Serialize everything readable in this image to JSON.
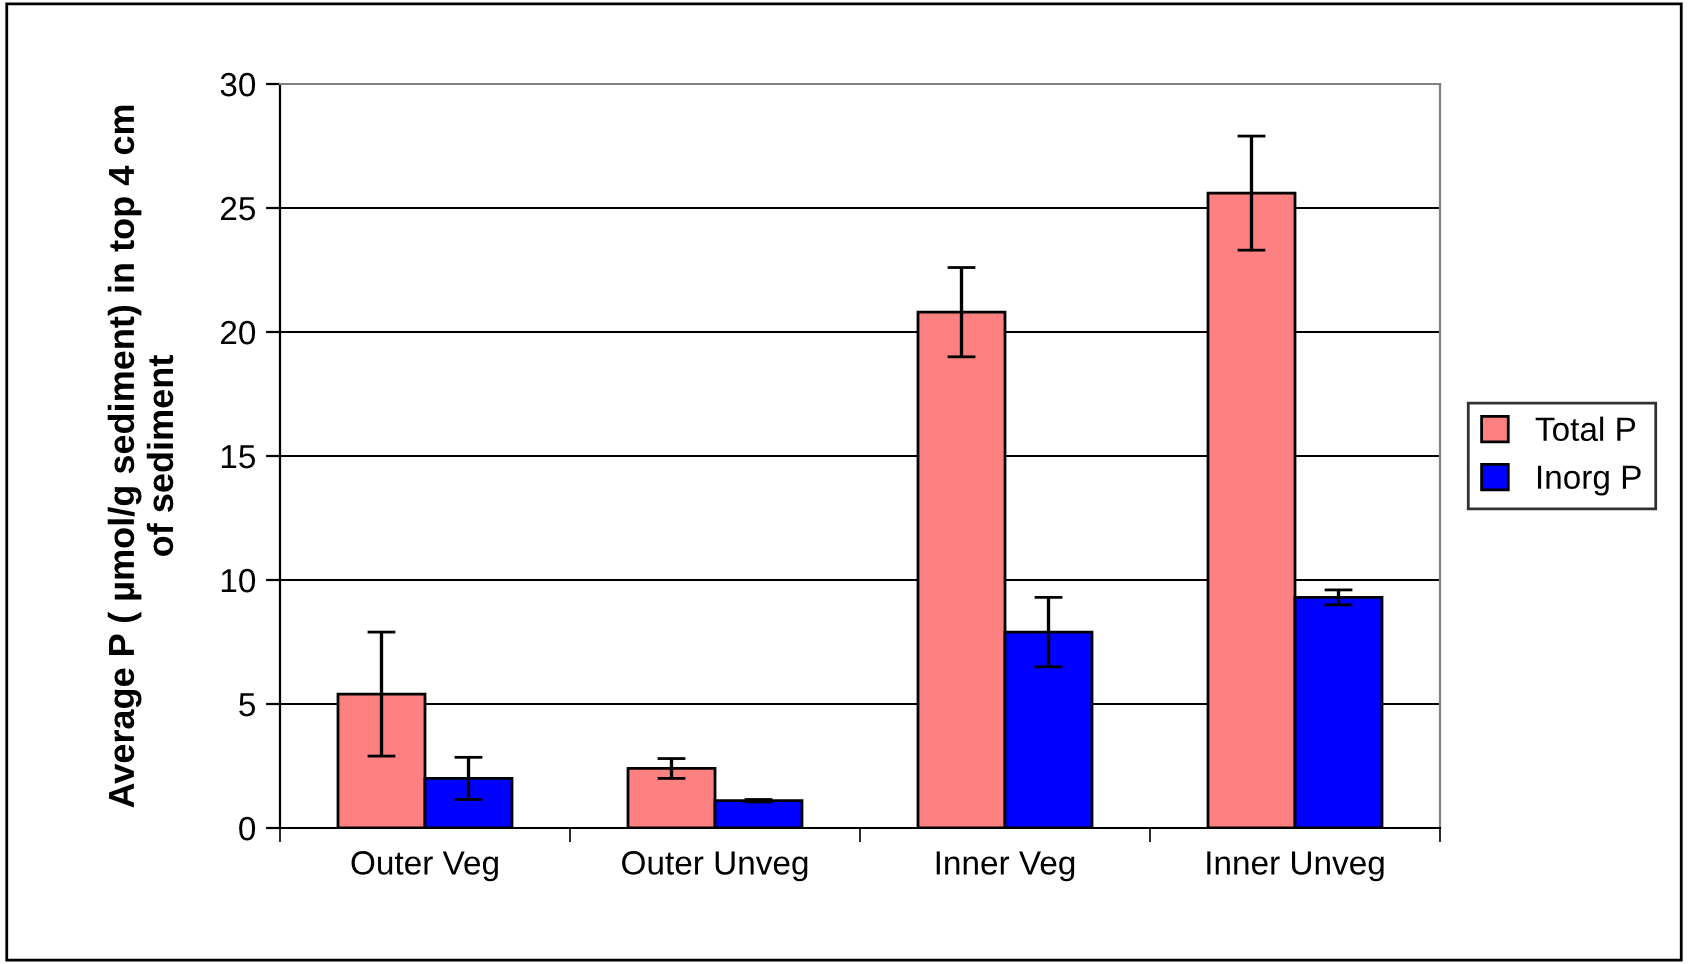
{
  "chart_data": {
    "type": "bar",
    "ylabel": "Average P ( µmol/g sediment) in top 4 cm\nof sediment",
    "categories": [
      "Outer Veg",
      "Outer Unveg",
      "Inner Veg",
      "Inner Unveg"
    ],
    "series": [
      {
        "name": "Total P",
        "color": "#ff8080",
        "values": [
          5.4,
          2.4,
          20.8,
          25.6
        ],
        "errors": [
          2.5,
          0.4,
          1.8,
          2.3
        ]
      },
      {
        "name": "Inorg P",
        "color": "#0000ff",
        "values": [
          2.0,
          1.1,
          7.9,
          9.3
        ],
        "errors": [
          0.85,
          0.05,
          1.4,
          0.3
        ]
      }
    ],
    "ylim": [
      0,
      30
    ],
    "yticks": [
      0,
      5,
      10,
      15,
      20,
      25,
      30
    ],
    "grid": "y",
    "legend": "right"
  }
}
